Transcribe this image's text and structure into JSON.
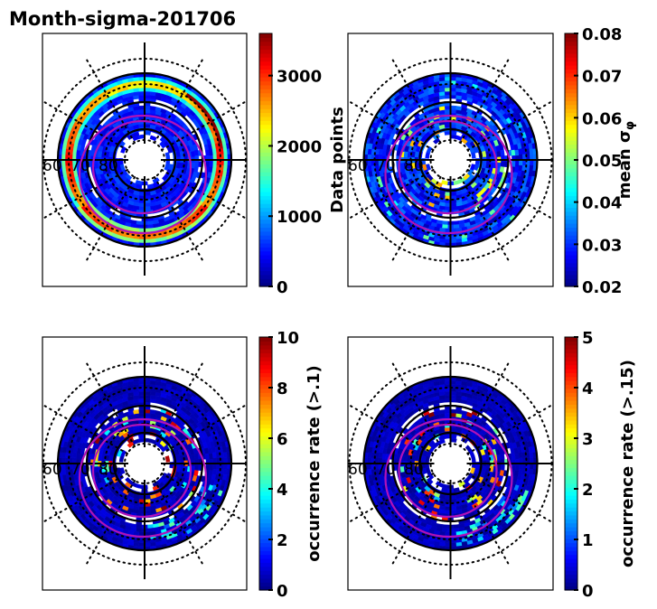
{
  "chart_data": {
    "type": "heatmap",
    "suptitle": "Month-sigma-201706",
    "projection": "polar (magnetic latitude / MLT)",
    "latitude_labels": [
      "60",
      "70",
      "80"
    ],
    "panels": [
      {
        "id": "data-points",
        "colorbar_label": "Data points",
        "colorbar_label_position": "left-of-next-panel",
        "vmin": 0,
        "vmax": 3600,
        "ticks": [
          0,
          1000,
          2000,
          3000
        ],
        "tick_labels": [
          "0",
          "1000",
          "2000",
          "3000"
        ],
        "colormap": "jet",
        "pattern": "high-ring-outer"
      },
      {
        "id": "mean-sigma-phi",
        "colorbar_label": "mean σ_φ",
        "vmin": 0.02,
        "vmax": 0.08,
        "ticks": [
          0.02,
          0.03,
          0.04,
          0.05,
          0.06,
          0.07,
          0.08
        ],
        "tick_labels": [
          "0.02",
          "0.03",
          "0.04",
          "0.05",
          "0.06",
          "0.07",
          "0.08"
        ],
        "colormap": "jet",
        "pattern": "low-with-inner-spots"
      },
      {
        "id": "occurrence-rate-0.1",
        "colorbar_label": "occurrence rate (>.1)",
        "vmin": 0,
        "vmax": 10,
        "ticks": [
          0,
          2,
          4,
          6,
          8,
          10
        ],
        "tick_labels": [
          "0",
          "2",
          "4",
          "6",
          "8",
          "10"
        ],
        "colormap": "jet",
        "pattern": "low-with-inner-hotspots"
      },
      {
        "id": "occurrence-rate-0.15",
        "colorbar_label": "occurrence rate (>.15)",
        "vmin": 0,
        "vmax": 5,
        "ticks": [
          0,
          1,
          2,
          3,
          4,
          5
        ],
        "tick_labels": [
          "0",
          "1",
          "2",
          "3",
          "4",
          "5"
        ],
        "colormap": "jet",
        "pattern": "low-with-inner-hotspots"
      }
    ],
    "overlay": {
      "auroral_oval_color": "#b012b8",
      "grid": "dotted latitude circles and 30° MLT spokes"
    }
  }
}
